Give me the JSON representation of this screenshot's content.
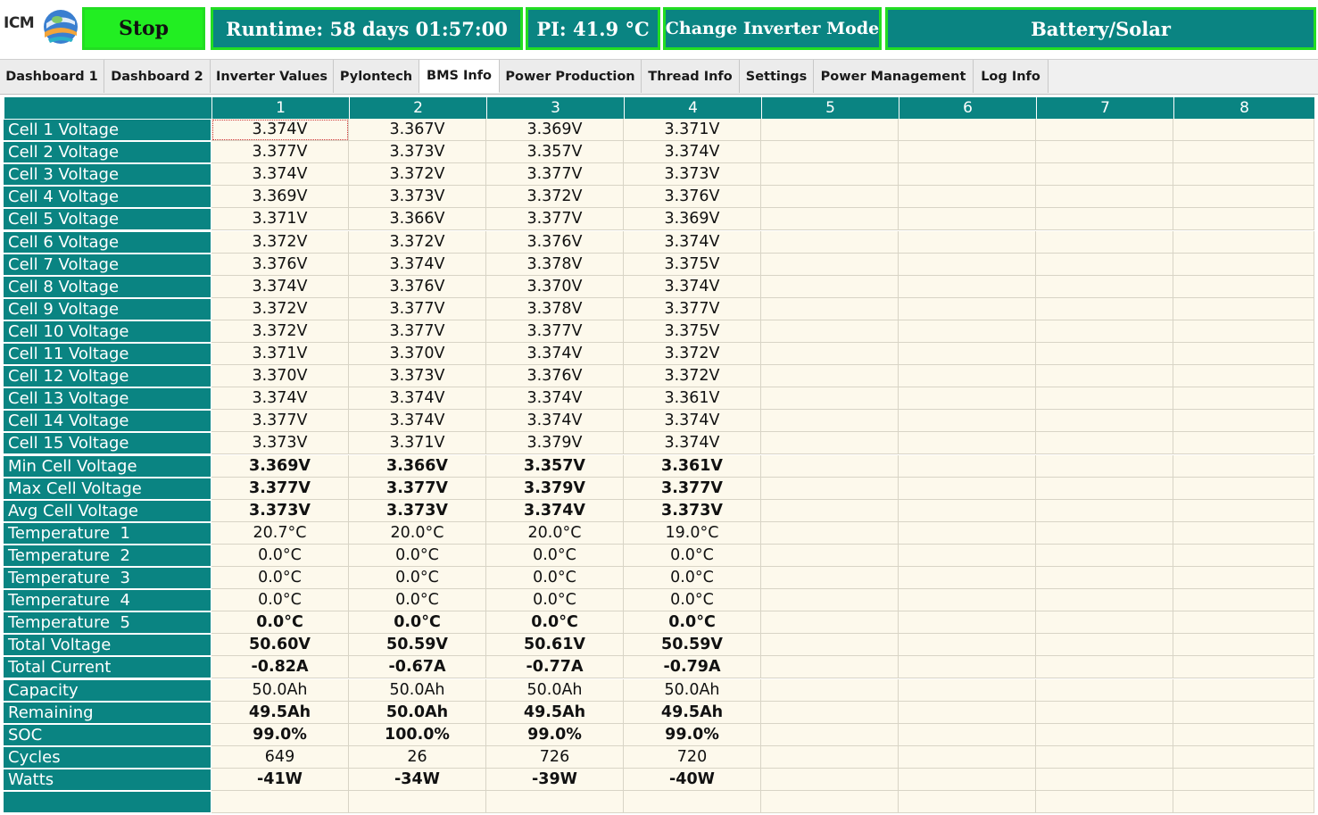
{
  "header": {
    "logo_text": "ICM",
    "stop_label": "Stop",
    "runtime": "Runtime: 58 days 01:57:00",
    "pi_temp": "PI: 41.9 °C",
    "change_mode_label": "Change Inverter Mode",
    "battery_mode_label": "Battery/Solar",
    "colors": {
      "accent": "#0a8482",
      "stop_green": "#22ee22",
      "border_green": "#22dd22",
      "cell_bg": "#fdf9ec"
    }
  },
  "tabs": [
    {
      "label": "Dashboard 1",
      "active": false
    },
    {
      "label": "Dashboard 2",
      "active": false
    },
    {
      "label": "Inverter Values",
      "active": false
    },
    {
      "label": "Pylontech",
      "active": false
    },
    {
      "label": "BMS Info",
      "active": true
    },
    {
      "label": "Power Production",
      "active": false
    },
    {
      "label": "Thread Info",
      "active": false
    },
    {
      "label": "Settings",
      "active": false
    },
    {
      "label": "Power Management",
      "active": false
    },
    {
      "label": "Log Info",
      "active": false
    }
  ],
  "table": {
    "columns": [
      "1",
      "2",
      "3",
      "4",
      "5",
      "6",
      "7",
      "8"
    ],
    "rows": [
      {
        "label": "Cell 1 Voltage",
        "values": [
          "3.374V",
          "3.367V",
          "3.369V",
          "3.371V"
        ],
        "bold": false
      },
      {
        "label": "Cell 2 Voltage",
        "values": [
          "3.377V",
          "3.373V",
          "3.357V",
          "3.374V"
        ],
        "bold": false
      },
      {
        "label": "Cell 3 Voltage",
        "values": [
          "3.374V",
          "3.372V",
          "3.377V",
          "3.373V"
        ],
        "bold": false
      },
      {
        "label": "Cell 4 Voltage",
        "values": [
          "3.369V",
          "3.373V",
          "3.372V",
          "3.376V"
        ],
        "bold": false
      },
      {
        "label": "Cell 5 Voltage",
        "values": [
          "3.371V",
          "3.366V",
          "3.377V",
          "3.369V"
        ],
        "bold": false
      },
      {
        "label": "Cell 6 Voltage",
        "values": [
          "3.372V",
          "3.372V",
          "3.376V",
          "3.374V"
        ],
        "bold": false
      },
      {
        "label": "Cell 7 Voltage",
        "values": [
          "3.376V",
          "3.374V",
          "3.378V",
          "3.375V"
        ],
        "bold": false
      },
      {
        "label": "Cell 8 Voltage",
        "values": [
          "3.374V",
          "3.376V",
          "3.370V",
          "3.374V"
        ],
        "bold": false
      },
      {
        "label": "Cell 9 Voltage",
        "values": [
          "3.372V",
          "3.377V",
          "3.378V",
          "3.377V"
        ],
        "bold": false
      },
      {
        "label": "Cell 10 Voltage",
        "values": [
          "3.372V",
          "3.377V",
          "3.377V",
          "3.375V"
        ],
        "bold": false
      },
      {
        "label": "Cell 11 Voltage",
        "values": [
          "3.371V",
          "3.370V",
          "3.374V",
          "3.372V"
        ],
        "bold": false
      },
      {
        "label": "Cell 12 Voltage",
        "values": [
          "3.370V",
          "3.373V",
          "3.376V",
          "3.372V"
        ],
        "bold": false
      },
      {
        "label": "Cell 13 Voltage",
        "values": [
          "3.374V",
          "3.374V",
          "3.374V",
          "3.361V"
        ],
        "bold": false
      },
      {
        "label": "Cell 14 Voltage",
        "values": [
          "3.377V",
          "3.374V",
          "3.374V",
          "3.374V"
        ],
        "bold": false
      },
      {
        "label": "Cell 15 Voltage",
        "values": [
          "3.373V",
          "3.371V",
          "3.379V",
          "3.374V"
        ],
        "bold": false
      },
      {
        "label": "Min Cell Voltage",
        "values": [
          "3.369V",
          "3.366V",
          "3.357V",
          "3.361V"
        ],
        "bold": true
      },
      {
        "label": "Max Cell Voltage",
        "values": [
          "3.377V",
          "3.377V",
          "3.379V",
          "3.377V"
        ],
        "bold": true
      },
      {
        "label": "Avg Cell Voltage",
        "values": [
          "3.373V",
          "3.373V",
          "3.374V",
          "3.373V"
        ],
        "bold": true
      },
      {
        "label": "Temperature  1",
        "values": [
          "20.7°C",
          "20.0°C",
          "20.0°C",
          "19.0°C"
        ],
        "bold": false
      },
      {
        "label": "Temperature  2",
        "values": [
          "0.0°C",
          "0.0°C",
          "0.0°C",
          "0.0°C"
        ],
        "bold": false
      },
      {
        "label": "Temperature  3",
        "values": [
          "0.0°C",
          "0.0°C",
          "0.0°C",
          "0.0°C"
        ],
        "bold": false
      },
      {
        "label": "Temperature  4",
        "values": [
          "0.0°C",
          "0.0°C",
          "0.0°C",
          "0.0°C"
        ],
        "bold": false
      },
      {
        "label": "Temperature  5",
        "values": [
          "0.0°C",
          "0.0°C",
          "0.0°C",
          "0.0°C"
        ],
        "bold": true
      },
      {
        "label": "Total Voltage",
        "values": [
          "50.60V",
          "50.59V",
          "50.61V",
          "50.59V"
        ],
        "bold": true
      },
      {
        "label": "Total Current",
        "values": [
          "-0.82A",
          "-0.67A",
          "-0.77A",
          "-0.79A"
        ],
        "bold": true
      },
      {
        "label": "Capacity",
        "values": [
          "50.0Ah",
          "50.0Ah",
          "50.0Ah",
          "50.0Ah"
        ],
        "bold": false
      },
      {
        "label": "Remaining",
        "values": [
          "49.5Ah",
          "50.0Ah",
          "49.5Ah",
          "49.5Ah"
        ],
        "bold": true
      },
      {
        "label": "SOC",
        "values": [
          "99.0%",
          "100.0%",
          "99.0%",
          "99.0%"
        ],
        "bold": true
      },
      {
        "label": "Cycles",
        "values": [
          "649",
          "26",
          "726",
          "720"
        ],
        "bold": false
      },
      {
        "label": "Watts",
        "values": [
          "-41W",
          "-34W",
          "-39W",
          "-40W"
        ],
        "bold": true
      },
      {
        "label": "",
        "values": [
          "",
          "",
          "",
          ""
        ],
        "bold": false
      }
    ]
  }
}
